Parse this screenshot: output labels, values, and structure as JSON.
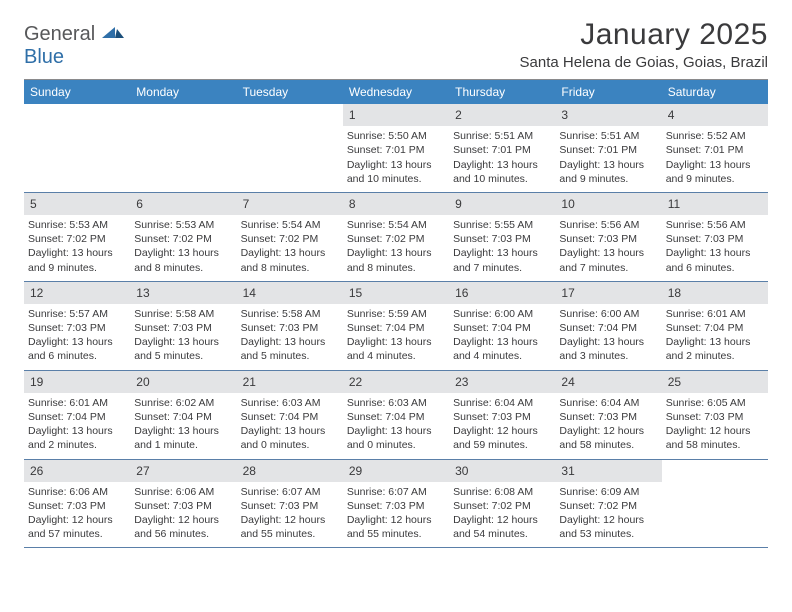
{
  "logo": {
    "word1": "General",
    "word2": "Blue"
  },
  "title": "January 2025",
  "location": "Santa Helena de Goias, Goias, Brazil",
  "colors": {
    "header_bg": "#3b83c0",
    "header_text": "#ffffff",
    "daynum_bg": "#e3e4e6",
    "week_border": "#5a7fa8",
    "text": "#3a3a3c",
    "logo_gray": "#57585a",
    "logo_blue": "#2f6fa8"
  },
  "dow": [
    "Sunday",
    "Monday",
    "Tuesday",
    "Wednesday",
    "Thursday",
    "Friday",
    "Saturday"
  ],
  "weeks": [
    [
      {
        "n": "",
        "sr": "",
        "ss": "",
        "dl": ""
      },
      {
        "n": "",
        "sr": "",
        "ss": "",
        "dl": ""
      },
      {
        "n": "",
        "sr": "",
        "ss": "",
        "dl": ""
      },
      {
        "n": "1",
        "sr": "Sunrise: 5:50 AM",
        "ss": "Sunset: 7:01 PM",
        "dl": "Daylight: 13 hours and 10 minutes."
      },
      {
        "n": "2",
        "sr": "Sunrise: 5:51 AM",
        "ss": "Sunset: 7:01 PM",
        "dl": "Daylight: 13 hours and 10 minutes."
      },
      {
        "n": "3",
        "sr": "Sunrise: 5:51 AM",
        "ss": "Sunset: 7:01 PM",
        "dl": "Daylight: 13 hours and 9 minutes."
      },
      {
        "n": "4",
        "sr": "Sunrise: 5:52 AM",
        "ss": "Sunset: 7:01 PM",
        "dl": "Daylight: 13 hours and 9 minutes."
      }
    ],
    [
      {
        "n": "5",
        "sr": "Sunrise: 5:53 AM",
        "ss": "Sunset: 7:02 PM",
        "dl": "Daylight: 13 hours and 9 minutes."
      },
      {
        "n": "6",
        "sr": "Sunrise: 5:53 AM",
        "ss": "Sunset: 7:02 PM",
        "dl": "Daylight: 13 hours and 8 minutes."
      },
      {
        "n": "7",
        "sr": "Sunrise: 5:54 AM",
        "ss": "Sunset: 7:02 PM",
        "dl": "Daylight: 13 hours and 8 minutes."
      },
      {
        "n": "8",
        "sr": "Sunrise: 5:54 AM",
        "ss": "Sunset: 7:02 PM",
        "dl": "Daylight: 13 hours and 8 minutes."
      },
      {
        "n": "9",
        "sr": "Sunrise: 5:55 AM",
        "ss": "Sunset: 7:03 PM",
        "dl": "Daylight: 13 hours and 7 minutes."
      },
      {
        "n": "10",
        "sr": "Sunrise: 5:56 AM",
        "ss": "Sunset: 7:03 PM",
        "dl": "Daylight: 13 hours and 7 minutes."
      },
      {
        "n": "11",
        "sr": "Sunrise: 5:56 AM",
        "ss": "Sunset: 7:03 PM",
        "dl": "Daylight: 13 hours and 6 minutes."
      }
    ],
    [
      {
        "n": "12",
        "sr": "Sunrise: 5:57 AM",
        "ss": "Sunset: 7:03 PM",
        "dl": "Daylight: 13 hours and 6 minutes."
      },
      {
        "n": "13",
        "sr": "Sunrise: 5:58 AM",
        "ss": "Sunset: 7:03 PM",
        "dl": "Daylight: 13 hours and 5 minutes."
      },
      {
        "n": "14",
        "sr": "Sunrise: 5:58 AM",
        "ss": "Sunset: 7:03 PM",
        "dl": "Daylight: 13 hours and 5 minutes."
      },
      {
        "n": "15",
        "sr": "Sunrise: 5:59 AM",
        "ss": "Sunset: 7:04 PM",
        "dl": "Daylight: 13 hours and 4 minutes."
      },
      {
        "n": "16",
        "sr": "Sunrise: 6:00 AM",
        "ss": "Sunset: 7:04 PM",
        "dl": "Daylight: 13 hours and 4 minutes."
      },
      {
        "n": "17",
        "sr": "Sunrise: 6:00 AM",
        "ss": "Sunset: 7:04 PM",
        "dl": "Daylight: 13 hours and 3 minutes."
      },
      {
        "n": "18",
        "sr": "Sunrise: 6:01 AM",
        "ss": "Sunset: 7:04 PM",
        "dl": "Daylight: 13 hours and 2 minutes."
      }
    ],
    [
      {
        "n": "19",
        "sr": "Sunrise: 6:01 AM",
        "ss": "Sunset: 7:04 PM",
        "dl": "Daylight: 13 hours and 2 minutes."
      },
      {
        "n": "20",
        "sr": "Sunrise: 6:02 AM",
        "ss": "Sunset: 7:04 PM",
        "dl": "Daylight: 13 hours and 1 minute."
      },
      {
        "n": "21",
        "sr": "Sunrise: 6:03 AM",
        "ss": "Sunset: 7:04 PM",
        "dl": "Daylight: 13 hours and 0 minutes."
      },
      {
        "n": "22",
        "sr": "Sunrise: 6:03 AM",
        "ss": "Sunset: 7:04 PM",
        "dl": "Daylight: 13 hours and 0 minutes."
      },
      {
        "n": "23",
        "sr": "Sunrise: 6:04 AM",
        "ss": "Sunset: 7:03 PM",
        "dl": "Daylight: 12 hours and 59 minutes."
      },
      {
        "n": "24",
        "sr": "Sunrise: 6:04 AM",
        "ss": "Sunset: 7:03 PM",
        "dl": "Daylight: 12 hours and 58 minutes."
      },
      {
        "n": "25",
        "sr": "Sunrise: 6:05 AM",
        "ss": "Sunset: 7:03 PM",
        "dl": "Daylight: 12 hours and 58 minutes."
      }
    ],
    [
      {
        "n": "26",
        "sr": "Sunrise: 6:06 AM",
        "ss": "Sunset: 7:03 PM",
        "dl": "Daylight: 12 hours and 57 minutes."
      },
      {
        "n": "27",
        "sr": "Sunrise: 6:06 AM",
        "ss": "Sunset: 7:03 PM",
        "dl": "Daylight: 12 hours and 56 minutes."
      },
      {
        "n": "28",
        "sr": "Sunrise: 6:07 AM",
        "ss": "Sunset: 7:03 PM",
        "dl": "Daylight: 12 hours and 55 minutes."
      },
      {
        "n": "29",
        "sr": "Sunrise: 6:07 AM",
        "ss": "Sunset: 7:03 PM",
        "dl": "Daylight: 12 hours and 55 minutes."
      },
      {
        "n": "30",
        "sr": "Sunrise: 6:08 AM",
        "ss": "Sunset: 7:02 PM",
        "dl": "Daylight: 12 hours and 54 minutes."
      },
      {
        "n": "31",
        "sr": "Sunrise: 6:09 AM",
        "ss": "Sunset: 7:02 PM",
        "dl": "Daylight: 12 hours and 53 minutes."
      },
      {
        "n": "",
        "sr": "",
        "ss": "",
        "dl": ""
      }
    ]
  ]
}
